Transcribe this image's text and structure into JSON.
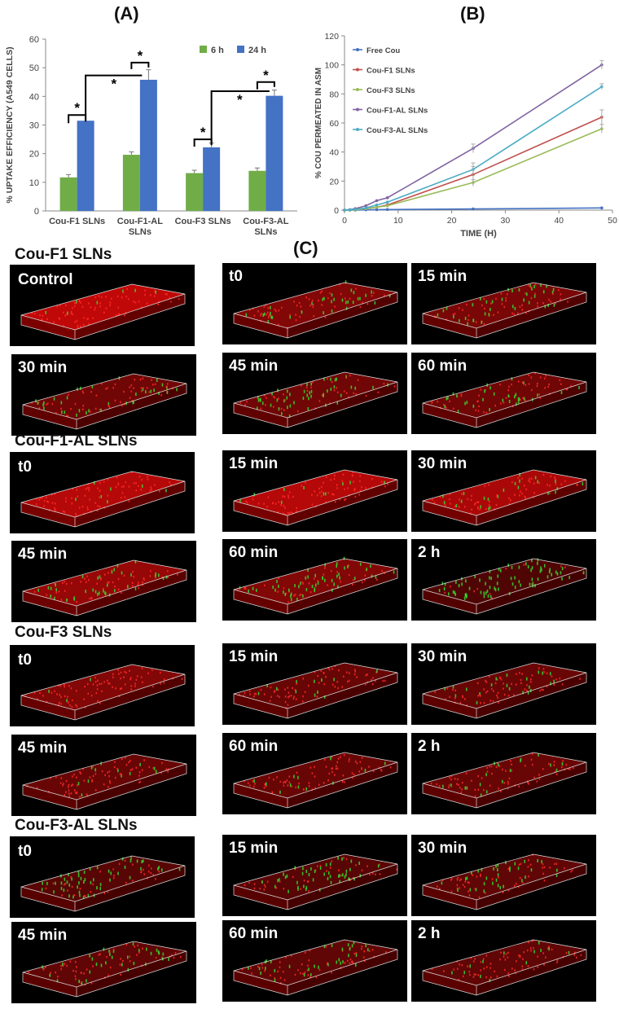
{
  "panels": {
    "a": "(A)",
    "b": "(B)",
    "c": "(C)"
  },
  "chart_data": [
    {
      "type": "bar",
      "ylabel": "% UPTAKE EFFICIENCY (A549 CELLS)",
      "ylim": [
        0,
        60
      ],
      "yticks": [
        "0",
        "10",
        "20",
        "30",
        "40",
        "50",
        "60"
      ],
      "categories": [
        "Cou-F1 SLNs",
        "Cou-F1-AL SLNs",
        "Cou-F3 SLNs",
        "Cou-F3-AL SLNs"
      ],
      "category_lines": [
        [
          "Cou-F1 SLNs"
        ],
        [
          "Cou-F1-AL",
          "SLNs"
        ],
        [
          "Cou-F3 SLNs"
        ],
        [
          "Cou-F3-AL",
          "SLNs"
        ]
      ],
      "series": [
        {
          "name": "6 h",
          "color": "#70ad47",
          "values": [
            11.7,
            19.6,
            13.2,
            14.0
          ],
          "errors": [
            1.0,
            1.0,
            1.0,
            1.0
          ]
        },
        {
          "name": "24 h",
          "color": "#4472c4",
          "values": [
            31.5,
            45.8,
            22.2,
            40.2
          ],
          "errors": [
            0,
            3.5,
            1.5,
            2.0
          ]
        }
      ],
      "legend_position": "top-right",
      "significance_marker": "*"
    },
    {
      "type": "line",
      "xlabel": "TIME (H)",
      "ylabel": "% COU PERMEATED IN ASM",
      "xlim": [
        0,
        50
      ],
      "ylim": [
        0,
        120
      ],
      "xticks": [
        "0",
        "10",
        "20",
        "30",
        "40",
        "50"
      ],
      "yticks": [
        "0",
        "20",
        "40",
        "60",
        "80",
        "100",
        "120"
      ],
      "x": [
        0,
        1,
        2,
        4,
        6,
        8,
        24,
        48
      ],
      "series": [
        {
          "name": "Free Cou",
          "color": "#4472c4",
          "values": [
            0,
            0,
            0,
            0.2,
            0.3,
            0.4,
            0.8,
            1.5
          ]
        },
        {
          "name": "Cou-F1 SLNs",
          "color": "#c0504d",
          "values": [
            0,
            0,
            0.2,
            1.0,
            2.0,
            3.5,
            24.5,
            64
          ]
        },
        {
          "name": "Cou-F3 SLNs",
          "color": "#9bbb59",
          "values": [
            0,
            0,
            0.2,
            1.0,
            2.0,
            3.0,
            19.0,
            56
          ]
        },
        {
          "name": "Cou-F1-AL SLNs",
          "color": "#8064a2",
          "values": [
            0,
            0.3,
            1.0,
            3.0,
            6.5,
            8.5,
            42.5,
            100
          ]
        },
        {
          "name": "Cou-F3-AL SLNs",
          "color": "#4bacc6",
          "values": [
            0,
            0.2,
            0.5,
            1.5,
            3.5,
            5.5,
            28.0,
            85
          ]
        }
      ],
      "legend_position": "top-left"
    }
  ],
  "microscopy": {
    "sections": [
      {
        "title": "Cou-F1 SLNs",
        "tiles": [
          "Control",
          "t0",
          "15 min",
          "30 min",
          "45 min",
          "60 min"
        ],
        "green": [
          0.05,
          0.3,
          0.35,
          0.4,
          0.4,
          0.4
        ],
        "red": [
          0.9,
          0.6,
          0.55,
          0.5,
          0.5,
          0.5
        ]
      },
      {
        "title": "Cou-F1-AL SLNs",
        "tiles": [
          "t0",
          "15 min",
          "30 min",
          "45 min",
          "60 min",
          "2 h"
        ],
        "green": [
          0.1,
          0.15,
          0.25,
          0.45,
          0.55,
          0.9
        ],
        "red": [
          0.85,
          0.85,
          0.8,
          0.7,
          0.6,
          0.3
        ]
      },
      {
        "title": "Cou-F3 SLNs",
        "tiles": [
          "t0",
          "15 min",
          "30 min",
          "45 min",
          "60 min",
          "2 h"
        ],
        "green": [
          0.05,
          0.1,
          0.12,
          0.15,
          0.15,
          0.15
        ],
        "red": [
          0.6,
          0.45,
          0.45,
          0.45,
          0.45,
          0.45
        ]
      },
      {
        "title": "Cou-F3-AL SLNs",
        "tiles": [
          "t0",
          "15 min",
          "30 min",
          "45 min",
          "60 min",
          "2 h"
        ],
        "green": [
          0.5,
          0.5,
          0.45,
          0.4,
          0.35,
          0.2
        ],
        "red": [
          0.35,
          0.35,
          0.4,
          0.4,
          0.4,
          0.4
        ]
      }
    ]
  }
}
